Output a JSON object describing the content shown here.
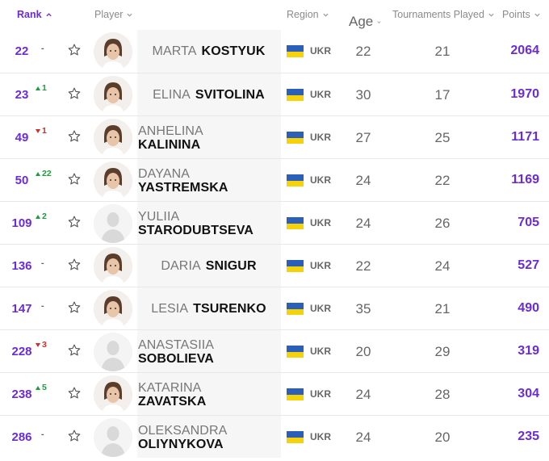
{
  "header": {
    "rank": "Rank",
    "player": "Player",
    "region": "Region",
    "age": "Age",
    "tournaments": "Tournaments Played",
    "points": "Points"
  },
  "colors": {
    "accent": "#6b2bd9",
    "up": "#1e9c3a",
    "down": "#d42a2a",
    "flag_blue": "#2b5fb8",
    "flag_yellow": "#f5d20a"
  },
  "rows": [
    {
      "rank": "22",
      "move_dir": "none",
      "move": "-",
      "first": "MARTA",
      "last": "KOSTYUK",
      "inline": true,
      "avatar": "photo",
      "region": "UKR",
      "age": "22",
      "tournaments": "21",
      "points": "2064"
    },
    {
      "rank": "23",
      "move_dir": "up",
      "move": "1",
      "first": "ELINA",
      "last": "SVITOLINA",
      "inline": true,
      "avatar": "photo",
      "region": "UKR",
      "age": "30",
      "tournaments": "17",
      "points": "1970"
    },
    {
      "rank": "49",
      "move_dir": "down",
      "move": "1",
      "first": "ANHELINA",
      "last": "KALININA",
      "inline": false,
      "avatar": "photo",
      "region": "UKR",
      "age": "27",
      "tournaments": "25",
      "points": "1171"
    },
    {
      "rank": "50",
      "move_dir": "up",
      "move": "22",
      "first": "DAYANA",
      "last": "YASTREMSKA",
      "inline": false,
      "avatar": "photo",
      "region": "UKR",
      "age": "24",
      "tournaments": "22",
      "points": "1169"
    },
    {
      "rank": "109",
      "move_dir": "up",
      "move": "2",
      "first": "YULIIA",
      "last": "STARODUBTSEVA",
      "inline": false,
      "avatar": "placeholder",
      "region": "UKR",
      "age": "24",
      "tournaments": "26",
      "points": "705"
    },
    {
      "rank": "136",
      "move_dir": "none",
      "move": "-",
      "first": "DARIA",
      "last": "SNIGUR",
      "inline": true,
      "avatar": "photo",
      "region": "UKR",
      "age": "22",
      "tournaments": "24",
      "points": "527"
    },
    {
      "rank": "147",
      "move_dir": "none",
      "move": "-",
      "first": "LESIA",
      "last": "TSURENKO",
      "inline": true,
      "avatar": "photo",
      "region": "UKR",
      "age": "35",
      "tournaments": "21",
      "points": "490"
    },
    {
      "rank": "228",
      "move_dir": "down",
      "move": "3",
      "first": "ANASTASIIA",
      "last": "SOBOLIEVA",
      "inline": false,
      "avatar": "placeholder",
      "region": "UKR",
      "age": "20",
      "tournaments": "29",
      "points": "319"
    },
    {
      "rank": "238",
      "move_dir": "up",
      "move": "5",
      "first": "KATARINA",
      "last": "ZAVATSKA",
      "inline": false,
      "avatar": "photo",
      "region": "UKR",
      "age": "24",
      "tournaments": "28",
      "points": "304"
    },
    {
      "rank": "286",
      "move_dir": "none",
      "move": "-",
      "first": "OLEKSANDRA",
      "last": "OLIYNYKOVA",
      "inline": false,
      "avatar": "placeholder",
      "region": "UKR",
      "age": "24",
      "tournaments": "20",
      "points": "235"
    }
  ]
}
